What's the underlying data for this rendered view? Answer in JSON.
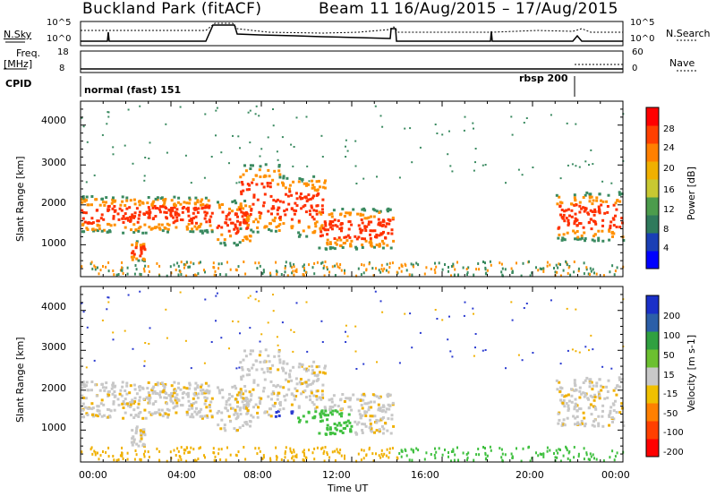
{
  "header": {
    "title": "Buckland Park (fitACF)",
    "beam": "Beam 11",
    "dates": "16/Aug/2015 – 17/Aug/2015"
  },
  "top_panels": {
    "nsky_label": "N.Sky",
    "nsky_ticks": [
      "10^5",
      "10^0"
    ],
    "nsearch_label": "N.Search",
    "nsearch_ticks": [
      "10^5",
      "10^0"
    ],
    "freq_label": "Freq.",
    "freq_unit": "[MHz]",
    "freq_ticks": [
      "18",
      "8"
    ],
    "nave_label": "Nave",
    "nave_ticks": [
      "60",
      "0"
    ],
    "cpid_label": "CPID",
    "cpid_mode_1": "normal (fast) 151",
    "cpid_mode_2": "rbsp 200"
  },
  "chart_data": [
    {
      "type": "heatmap",
      "name": "power-panel",
      "ylabel": "Slant Range [km]",
      "ylim": [
        200,
        4500
      ],
      "yticks": [
        1000,
        2000,
        3000,
        4000
      ],
      "colorbar": {
        "label": "Power [dB]",
        "ticks": [
          "4",
          "8",
          "12",
          "16",
          "20",
          "24",
          "28"
        ],
        "colors": [
          "#0000ff",
          "#1a3fb5",
          "#2f7a5c",
          "#4c9c4c",
          "#c8c832",
          "#f0b000",
          "#ff8000",
          "#ff4000",
          "#ff0000"
        ]
      },
      "colors": {
        "power_core": "#ff3000",
        "power_edge": "#ff9000",
        "power_fringe": "#3a8a60"
      }
    },
    {
      "type": "heatmap",
      "name": "velocity-panel",
      "ylabel": "Slant Range [km]",
      "ylim": [
        200,
        4500
      ],
      "yticks": [
        1000,
        2000,
        3000,
        4000
      ],
      "colorbar": {
        "label": "Velocity [m s-1]",
        "ticks": [
          "200",
          "100",
          "50",
          "15",
          "-15",
          "-50",
          "-100",
          "-200"
        ],
        "colors": [
          "#1a30c8",
          "#2c5fa8",
          "#30a040",
          "#6cc030",
          "#c8c8c8",
          "#f0c000",
          "#ff8000",
          "#ff4000",
          "#ff0000"
        ]
      },
      "colors": {
        "ground": "#c8c8c8",
        "positive": "#40c040",
        "negative": "#f0b000",
        "strong": "#2a3ad0"
      }
    }
  ],
  "xaxis": {
    "label": "Time UT",
    "ticks": [
      "00:00",
      "04:00",
      "08:00",
      "12:00",
      "16:00",
      "20:00",
      "00:00"
    ]
  }
}
